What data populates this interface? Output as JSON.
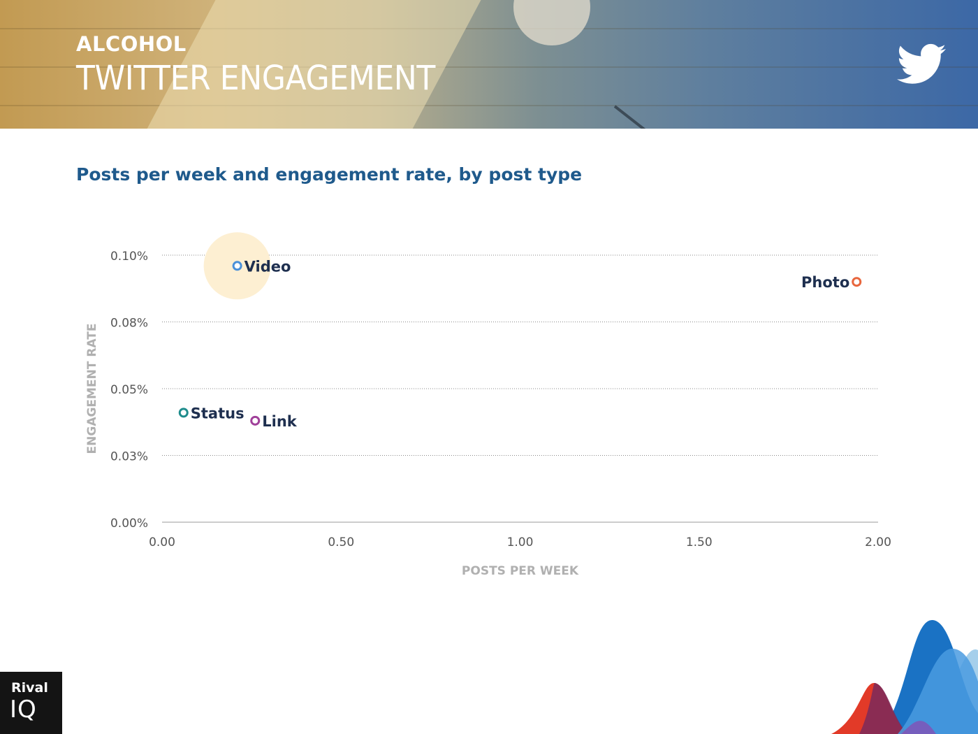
{
  "header": {
    "kicker": "ALCOHOL",
    "title": "TWITTER ENGAGEMENT"
  },
  "brand": {
    "logo_line1": "Rival",
    "logo_line2": "IQ"
  },
  "chart_data": {
    "type": "scatter",
    "title": "Posts per week and engagement rate, by post type",
    "xlabel": "POSTS PER WEEK",
    "ylabel": "ENGAGEMENT RATE",
    "xlim": [
      0,
      2
    ],
    "ylim": [
      0,
      0.1
    ],
    "x_ticks": [
      "0.00",
      "0.50",
      "1.00",
      "1.50",
      "2.00"
    ],
    "x_tick_values": [
      0,
      0.5,
      1,
      1.5,
      2
    ],
    "y_ticks": [
      "0.00%",
      "0.03%",
      "0.05%",
      "0.08%",
      "0.10%"
    ],
    "y_tick_values": [
      0,
      0.025,
      0.05,
      0.075,
      0.1
    ],
    "grid": "horizontal dotted",
    "points": [
      {
        "label": "Video",
        "x": 0.21,
        "y": 0.096,
        "color": "#4a90d9",
        "highlight": true
      },
      {
        "label": "Photo",
        "x": 1.94,
        "y": 0.09,
        "color": "#e8663d",
        "label_side": "left"
      },
      {
        "label": "Status",
        "x": 0.06,
        "y": 0.041,
        "color": "#1e8c8c"
      },
      {
        "label": "Link",
        "x": 0.26,
        "y": 0.038,
        "color": "#a0409a"
      }
    ],
    "label_color": "#1e2f4f",
    "highlight_color": "#fdefd2"
  }
}
